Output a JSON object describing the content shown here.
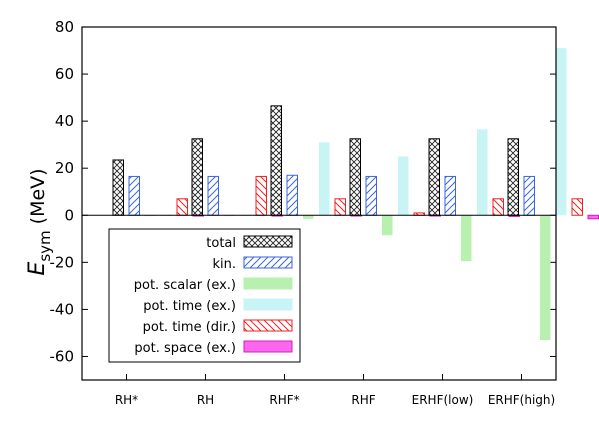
{
  "chart_data": {
    "type": "bar",
    "ylabel_main": "E",
    "ylabel_sub": "sym",
    "ylabel_unit": "(MeV)",
    "ylim": [
      -70,
      80
    ],
    "yticks": [
      -60,
      -40,
      -20,
      0,
      20,
      40,
      60,
      80
    ],
    "categories": [
      "RH*",
      "RH",
      "RHF*",
      "RHF",
      "ERHF(low)",
      "ERHF(high)"
    ],
    "series": [
      {
        "name": "total",
        "fill": "crosshatch",
        "color": "#000000",
        "values": [
          23.5,
          32.5,
          46.5,
          32.5,
          32.5,
          32.5
        ]
      },
      {
        "name": "kin.",
        "fill": "diag-right",
        "color": "#3a66dd",
        "values": [
          16.5,
          16.5,
          17,
          16.5,
          16.5,
          16.5
        ]
      },
      {
        "name": "pot. scalar (ex.)",
        "fill": "solid",
        "color": "#b8f0b0",
        "values": [
          0,
          0,
          -1.5,
          -8.5,
          -19.5,
          -53
        ]
      },
      {
        "name": "pot. time (ex.)",
        "fill": "solid",
        "color": "#c8f4f6",
        "values": [
          0,
          0,
          31,
          25,
          36.5,
          71
        ]
      },
      {
        "name": "pot. time (dir.)",
        "fill": "diag-left",
        "color": "#ee2222",
        "values": [
          7,
          16.5,
          7,
          1,
          7,
          7
        ]
      },
      {
        "name": "pot. space (ex.)",
        "fill": "solid-outline",
        "color": "#ff66ee",
        "values": [
          0,
          0,
          0,
          0,
          -0.5,
          -1.5
        ]
      }
    ],
    "legend_position": "lower-left"
  }
}
